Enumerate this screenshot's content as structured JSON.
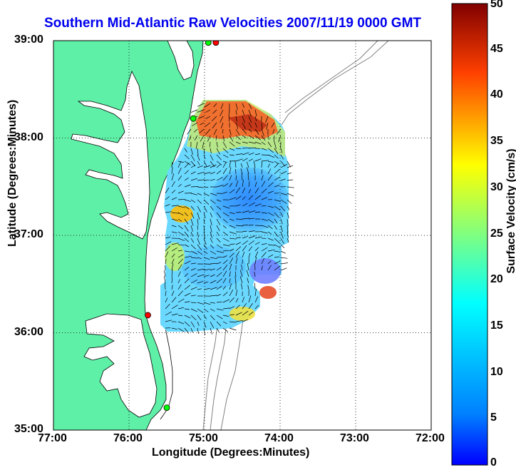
{
  "title": "Southern Mid-Atlantic Raw Velocities 2007/11/19 0000 GMT",
  "axes": {
    "xlabel": "Longitude (Degrees:Minutes)",
    "ylabel": "Latitude (Degrees:Minutes)",
    "xticks": [
      "77:00",
      "76:00",
      "75:00",
      "74:00",
      "73:00",
      "72:00"
    ],
    "yticks": [
      "39:00",
      "38:00",
      "37:00",
      "36:00",
      "35:00"
    ],
    "xlim_deg": [
      -77,
      -72
    ],
    "ylim_deg": [
      35,
      39
    ]
  },
  "colorbar": {
    "label": "Surface Velocity (cm/s)",
    "ticks": [
      "50",
      "45",
      "40",
      "35",
      "30",
      "25",
      "20",
      "15",
      "10",
      "5",
      "0"
    ],
    "range": [
      0,
      50
    ],
    "colormap": "jet"
  },
  "colors": {
    "land": "#5ff0a8",
    "coastline": "#000000",
    "bathymetry": "#808080",
    "title": "#0000ee",
    "station_red": "#ff0000",
    "station_green": "#00ff00"
  },
  "stations": [
    {
      "lon": -74.85,
      "lat": 38.98,
      "color": "red"
    },
    {
      "lon": -74.95,
      "lat": 38.98,
      "color": "green"
    },
    {
      "lon": -75.15,
      "lat": 38.2,
      "color": "green"
    },
    {
      "lon": -75.75,
      "lat": 36.18,
      "color": "red"
    },
    {
      "lon": -75.5,
      "lat": 35.23,
      "color": "green"
    }
  ]
}
